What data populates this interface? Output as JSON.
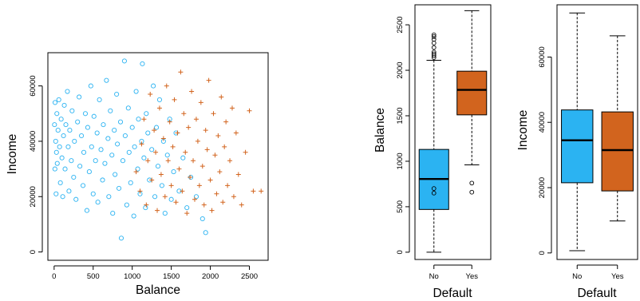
{
  "colors": {
    "no": "#2bb3f2",
    "yes": "#d2641e",
    "median": "#000000"
  },
  "chart_data": [
    {
      "type": "scatter",
      "xlabel": "Balance",
      "ylabel": "Income",
      "xlim": [
        -80,
        2740
      ],
      "ylim": [
        -3000,
        72000
      ],
      "x_ticks": [
        0,
        500,
        1000,
        1500,
        2000,
        2500
      ],
      "x_tick_labels": [
        "0",
        "500",
        "1000",
        "1500",
        "2000",
        "2500"
      ],
      "y_ticks": [
        0,
        20000,
        40000,
        60000
      ],
      "y_tick_labels": [
        "0",
        "20000",
        "40000",
        "60000"
      ],
      "grid": false,
      "series": [
        {
          "marker": "open-circle",
          "color": "#2bb3f2",
          "points": [
            [
              5,
              46000
            ],
            [
              10,
              30000
            ],
            [
              12,
              54000
            ],
            [
              20,
              40000
            ],
            [
              25,
              21000
            ],
            [
              30,
              36000
            ],
            [
              35,
              50000
            ],
            [
              40,
              32000
            ],
            [
              50,
              44000
            ],
            [
              60,
              55000
            ],
            [
              70,
              38000
            ],
            [
              80,
              25000
            ],
            [
              90,
              48000
            ],
            [
              100,
              34000
            ],
            [
              110,
              20000
            ],
            [
              120,
              42000
            ],
            [
              130,
              53000
            ],
            [
              140,
              30000
            ],
            [
              150,
              46000
            ],
            [
              170,
              58000
            ],
            [
              180,
              38000
            ],
            [
              190,
              22000
            ],
            [
              200,
              44000
            ],
            [
              220,
              33000
            ],
            [
              230,
              51000
            ],
            [
              250,
              27000
            ],
            [
              260,
              40000
            ],
            [
              280,
              19000
            ],
            [
              300,
              47000
            ],
            [
              320,
              56000
            ],
            [
              330,
              31000
            ],
            [
              350,
              42000
            ],
            [
              370,
              24000
            ],
            [
              380,
              36000
            ],
            [
              400,
              50000
            ],
            [
              420,
              15000
            ],
            [
              430,
              45000
            ],
            [
              450,
              29000
            ],
            [
              470,
              60000
            ],
            [
              480,
              38000
            ],
            [
              500,
              21000
            ],
            [
              510,
              49000
            ],
            [
              530,
              33000
            ],
            [
              550,
              43000
            ],
            [
              560,
              18000
            ],
            [
              580,
              55000
            ],
            [
              600,
              37000
            ],
            [
              620,
              26000
            ],
            [
              630,
              46000
            ],
            [
              650,
              32000
            ],
            [
              670,
              62000
            ],
            [
              690,
              41000
            ],
            [
              700,
              20000
            ],
            [
              720,
              51000
            ],
            [
              740,
              35000
            ],
            [
              750,
              14000
            ],
            [
              770,
              44000
            ],
            [
              780,
              28000
            ],
            [
              800,
              57000
            ],
            [
              810,
              39000
            ],
            [
              830,
              23000
            ],
            [
              850,
              47000
            ],
            [
              860,
              5000
            ],
            [
              880,
              33000
            ],
            [
              900,
              69000
            ],
            [
              910,
              42000
            ],
            [
              930,
              17000
            ],
            [
              950,
              52000
            ],
            [
              960,
              36000
            ],
            [
              980,
              25000
            ],
            [
              1000,
              45000
            ],
            [
              1020,
              13000
            ],
            [
              1030,
              38000
            ],
            [
              1050,
              58000
            ],
            [
              1070,
              30000
            ],
            [
              1080,
              48000
            ],
            [
              1100,
              21000
            ],
            [
              1120,
              40000
            ],
            [
              1130,
              68000
            ],
            [
              1150,
              34000
            ],
            [
              1170,
              16000
            ],
            [
              1180,
              50000
            ],
            [
              1200,
              43000
            ],
            [
              1220,
              26000
            ],
            [
              1250,
              37000
            ],
            [
              1270,
              60000
            ],
            [
              1290,
              20000
            ],
            [
              1310,
              45000
            ],
            [
              1330,
              31000
            ],
            [
              1350,
              55000
            ],
            [
              1380,
              24000
            ],
            [
              1400,
              40000
            ],
            [
              1420,
              14000
            ],
            [
              1450,
              35000
            ],
            [
              1480,
              48000
            ],
            [
              1500,
              19000
            ],
            [
              1530,
              29000
            ],
            [
              1560,
              43000
            ],
            [
              1600,
              22000
            ],
            [
              1650,
              34000
            ],
            [
              1700,
              16000
            ],
            [
              1750,
              27000
            ],
            [
              1820,
              20000
            ],
            [
              1900,
              12000
            ],
            [
              1940,
              7000
            ]
          ]
        },
        {
          "marker": "plus",
          "color": "#d2641e",
          "points": [
            [
              1050,
              29000
            ],
            [
              1100,
              22000
            ],
            [
              1120,
              39000
            ],
            [
              1150,
              48000
            ],
            [
              1180,
              17000
            ],
            [
              1200,
              33000
            ],
            [
              1230,
              57000
            ],
            [
              1250,
              26000
            ],
            [
              1280,
              44000
            ],
            [
              1300,
              36000
            ],
            [
              1320,
              15000
            ],
            [
              1350,
              52000
            ],
            [
              1370,
              28000
            ],
            [
              1400,
              41000
            ],
            [
              1420,
              20000
            ],
            [
              1440,
              60000
            ],
            [
              1460,
              33000
            ],
            [
              1480,
              47000
            ],
            [
              1500,
              24000
            ],
            [
              1520,
              38000
            ],
            [
              1540,
              55000
            ],
            [
              1560,
              18000
            ],
            [
              1580,
              43000
            ],
            [
              1600,
              30000
            ],
            [
              1620,
              65000
            ],
            [
              1640,
              22000
            ],
            [
              1660,
              50000
            ],
            [
              1680,
              36000
            ],
            [
              1700,
              14000
            ],
            [
              1720,
              45000
            ],
            [
              1740,
              27000
            ],
            [
              1760,
              58000
            ],
            [
              1780,
              33000
            ],
            [
              1800,
              19000
            ],
            [
              1820,
              48000
            ],
            [
              1840,
              40000
            ],
            [
              1860,
              24000
            ],
            [
              1880,
              54000
            ],
            [
              1900,
              31000
            ],
            [
              1920,
              17000
            ],
            [
              1940,
              44000
            ],
            [
              1960,
              37000
            ],
            [
              1980,
              62000
            ],
            [
              2000,
              26000
            ],
            [
              2020,
              15000
            ],
            [
              2040,
              50000
            ],
            [
              2060,
              35000
            ],
            [
              2080,
              21000
            ],
            [
              2100,
              42000
            ],
            [
              2120,
              29000
            ],
            [
              2140,
              56000
            ],
            [
              2160,
              18000
            ],
            [
              2180,
              38000
            ],
            [
              2200,
              47000
            ],
            [
              2220,
              24000
            ],
            [
              2250,
              33000
            ],
            [
              2280,
              52000
            ],
            [
              2300,
              20000
            ],
            [
              2330,
              43000
            ],
            [
              2360,
              28000
            ],
            [
              2400,
              17000
            ],
            [
              2450,
              36000
            ],
            [
              2500,
              51000
            ],
            [
              2550,
              22000
            ],
            [
              2650,
              22000
            ]
          ]
        }
      ]
    },
    {
      "type": "box",
      "xlabel": "Default",
      "ylabel": "Balance",
      "categories": [
        "No",
        "Yes"
      ],
      "ylim": [
        -80,
        2720
      ],
      "y_ticks": [
        0,
        500,
        1000,
        1500,
        2000,
        2500
      ],
      "y_tick_labels": [
        "0",
        "500",
        "1000",
        "1500",
        "2000",
        "2500"
      ],
      "boxes": [
        {
          "category": "No",
          "min": 0,
          "q1": 470,
          "median": 805,
          "q3": 1130,
          "max": 2110,
          "outliers": [
            700,
            650,
            2140,
            2160,
            2180,
            2200,
            2250,
            2300,
            2340,
            2370,
            2390
          ],
          "color": "#2bb3f2"
        },
        {
          "category": "Yes",
          "min": 960,
          "q1": 1510,
          "median": 1785,
          "q3": 1990,
          "max": 2655,
          "outliers": [
            760,
            660
          ],
          "color": "#d2641e"
        }
      ]
    },
    {
      "type": "box",
      "xlabel": "Default",
      "ylabel": "Income",
      "categories": [
        "No",
        "Yes"
      ],
      "ylim": [
        -2000,
        76000
      ],
      "y_ticks": [
        0,
        20000,
        40000,
        60000
      ],
      "y_tick_labels": [
        "0",
        "20000",
        "40000",
        "60000"
      ],
      "boxes": [
        {
          "category": "No",
          "min": 700,
          "q1": 21500,
          "median": 34500,
          "q3": 43800,
          "max": 73500,
          "outliers": [],
          "color": "#2bb3f2"
        },
        {
          "category": "Yes",
          "min": 9800,
          "q1": 19000,
          "median": 31500,
          "q3": 43200,
          "max": 66500,
          "outliers": [],
          "color": "#d2641e"
        }
      ]
    }
  ]
}
